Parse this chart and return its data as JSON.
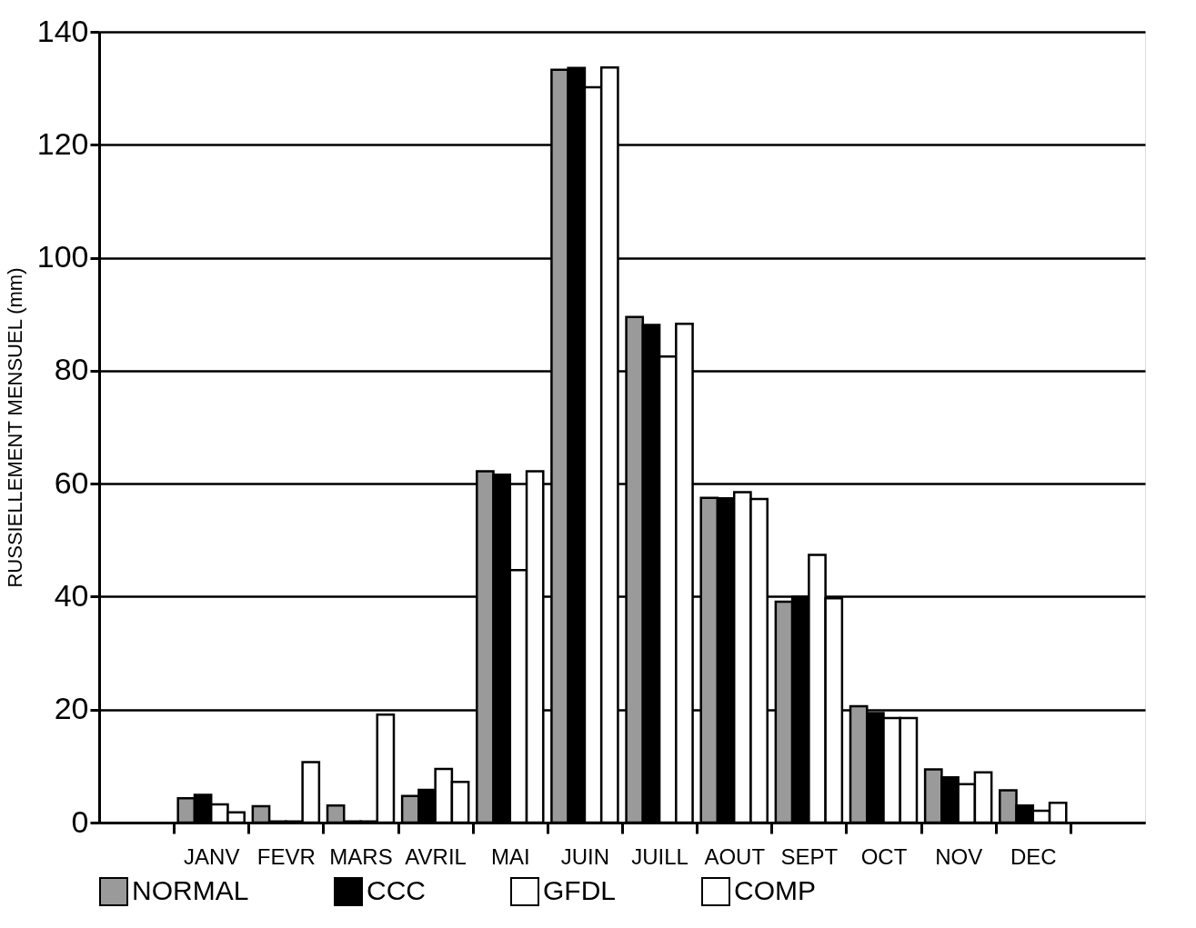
{
  "chart_data": {
    "type": "bar",
    "ylabel": "RUSSIELLEMENT MENSUEL (mm)",
    "categories": [
      "JANV",
      "FEVR",
      "MARS",
      "AVRIL",
      "MAI",
      "JUIN",
      "JUILL",
      "AOUT",
      "SEPT",
      "OCT",
      "NOV",
      "DEC"
    ],
    "series": [
      {
        "name": "NORMAL",
        "color": "#9a9a9a",
        "values": [
          4.3,
          2.9,
          3.0,
          4.7,
          62.2,
          133.3,
          89.5,
          57.5,
          39.1,
          20.6,
          9.4,
          5.7
        ]
      },
      {
        "name": "CCC",
        "color": "#000000",
        "values": [
          4.9,
          0.2,
          0.2,
          5.8,
          61.6,
          133.6,
          88.1,
          57.4,
          40.0,
          19.4,
          8.0,
          3.0
        ]
      },
      {
        "name": "GFDL",
        "color": "#ffffff",
        "values": [
          3.2,
          0.2,
          0.2,
          9.5,
          44.7,
          130.2,
          82.5,
          58.5,
          47.4,
          18.5,
          6.8,
          2.1
        ]
      },
      {
        "name": "COMP",
        "color": "#ffffff",
        "values": [
          1.8,
          10.7,
          19.1,
          7.2,
          62.2,
          133.7,
          88.3,
          57.3,
          39.7,
          18.5,
          8.9,
          3.5
        ]
      }
    ],
    "ylim": [
      0,
      140
    ],
    "yticks": [
      0,
      20,
      40,
      60,
      80,
      100,
      120,
      140
    ],
    "grid": "y",
    "legend": "bottom"
  }
}
